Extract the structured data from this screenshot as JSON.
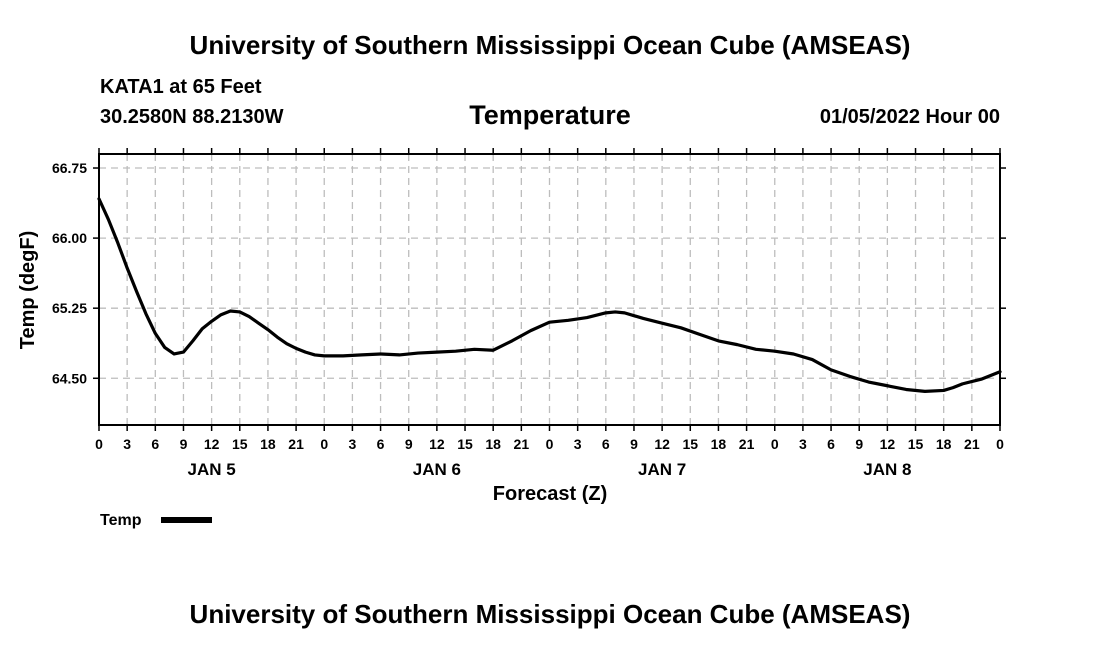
{
  "header": {
    "org_title": "University of Southern Mississippi Ocean Cube (AMSEAS)",
    "station": "KATA1 at 65 Feet",
    "coords": "30.2580N  88.2130W",
    "date": "01/05/2022 Hour 00"
  },
  "footer": {
    "org_title": "University of Southern Mississippi Ocean Cube (AMSEAS)"
  },
  "chart_data": {
    "type": "line",
    "title": "Temperature",
    "xlabel": "Forecast (Z)",
    "ylabel": "Temp (degF)",
    "xlim": [
      0,
      96
    ],
    "ylim": [
      64.0,
      66.9
    ],
    "yticks": [
      64.5,
      65.25,
      66.0,
      66.75
    ],
    "ytick_labels": [
      "64.50",
      "65.25",
      "66.00",
      "66.75"
    ],
    "xticks": [
      0,
      3,
      6,
      9,
      12,
      15,
      18,
      21,
      24,
      27,
      30,
      33,
      36,
      39,
      42,
      45,
      48,
      51,
      54,
      57,
      60,
      63,
      66,
      69,
      72,
      75,
      78,
      81,
      84,
      87,
      90,
      93,
      96
    ],
    "xtick_labels": [
      "0",
      "3",
      "6",
      "9",
      "12",
      "15",
      "18",
      "21",
      "0",
      "3",
      "6",
      "9",
      "12",
      "15",
      "18",
      "21",
      "0",
      "3",
      "6",
      "9",
      "12",
      "15",
      "18",
      "21",
      "0",
      "3",
      "6",
      "9",
      "12",
      "15",
      "18",
      "21",
      "0"
    ],
    "day_labels": [
      {
        "label": "JAN 5",
        "x": 12
      },
      {
        "label": "JAN 6",
        "x": 36
      },
      {
        "label": "JAN 7",
        "x": 60
      },
      {
        "label": "JAN 8",
        "x": 84
      }
    ],
    "grid": true,
    "legend": {
      "position": "bottom-left"
    },
    "series": [
      {
        "name": "Temp",
        "x": [
          0,
          1,
          2,
          3,
          4,
          5,
          6,
          7,
          8,
          9,
          10,
          11,
          12,
          13,
          14,
          15,
          16,
          17,
          18,
          19,
          20,
          21,
          22,
          23,
          24,
          26,
          28,
          30,
          32,
          34,
          36,
          38,
          40,
          42,
          44,
          46,
          48,
          50,
          52,
          54,
          55,
          56,
          57,
          58,
          60,
          62,
          64,
          66,
          68,
          70,
          72,
          74,
          76,
          78,
          80,
          82,
          84,
          86,
          88,
          90,
          91,
          92,
          94,
          96
        ],
        "values": [
          66.42,
          66.2,
          65.95,
          65.68,
          65.43,
          65.19,
          64.98,
          64.83,
          64.76,
          64.78,
          64.9,
          65.03,
          65.11,
          65.18,
          65.22,
          65.21,
          65.16,
          65.09,
          65.02,
          64.94,
          64.87,
          64.82,
          64.78,
          64.75,
          64.74,
          64.74,
          64.75,
          64.76,
          64.75,
          64.77,
          64.78,
          64.79,
          64.81,
          64.8,
          64.9,
          65.01,
          65.1,
          65.12,
          65.15,
          65.2,
          65.21,
          65.2,
          65.17,
          65.14,
          65.09,
          65.04,
          64.97,
          64.9,
          64.86,
          64.81,
          64.79,
          64.76,
          64.7,
          64.59,
          64.52,
          64.46,
          64.42,
          64.38,
          64.36,
          64.37,
          64.4,
          64.44,
          64.49,
          64.57
        ]
      }
    ]
  }
}
